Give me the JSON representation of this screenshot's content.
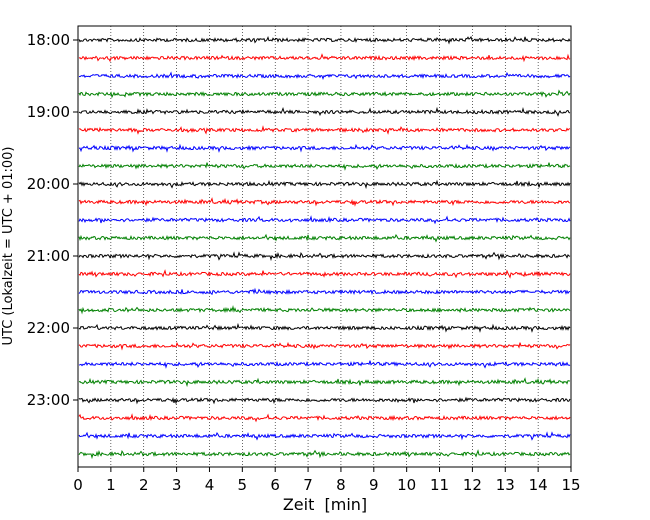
{
  "chart_data": {
    "type": "line",
    "title": "",
    "xlabel": "Zeit  [min]",
    "ylabel": "UTC (Lokalzeit = UTC + 01:00)",
    "xlim": [
      0,
      15
    ],
    "x_ticks": [
      0,
      1,
      2,
      3,
      4,
      5,
      6,
      7,
      8,
      9,
      10,
      11,
      12,
      13,
      14,
      15
    ],
    "y_tick_labels": [
      "18:00",
      "19:00",
      "20:00",
      "21:00",
      "22:00",
      "23:00"
    ],
    "grid": "vertical dotted",
    "start_hour": 18,
    "traces_per_hour": 4,
    "trace_count": 24,
    "colors": [
      "#000000",
      "#ff0000",
      "#0000ff",
      "#008000"
    ]
  }
}
